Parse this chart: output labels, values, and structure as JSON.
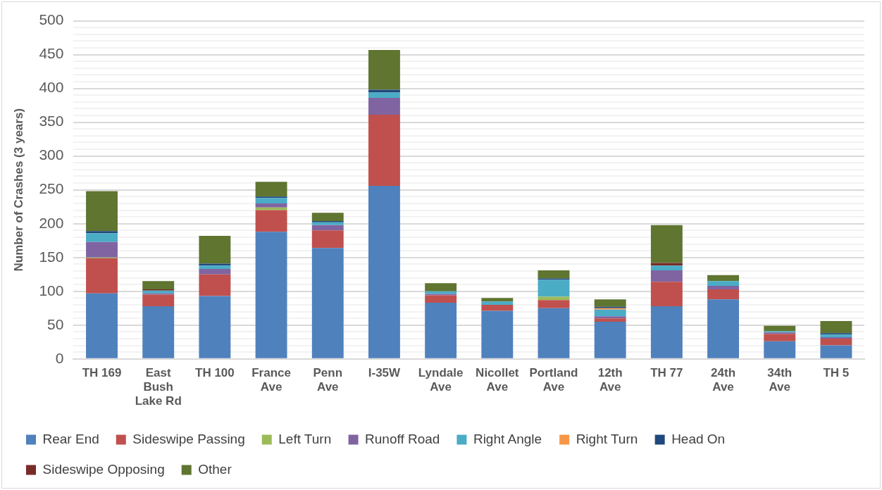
{
  "chart_data": {
    "type": "bar",
    "stacked": true,
    "ylabel": "Number of Crashes (3 years)",
    "categories": [
      "TH 169",
      "East Bush Lake Rd",
      "TH 100",
      "France Ave",
      "Penn Ave",
      "I-35W",
      "Lyndale Ave",
      "Nicollet Ave",
      "Portland Ave",
      "12th Ave",
      "TH 77",
      "24th Ave",
      "34th Ave",
      "TH 5"
    ],
    "series": [
      {
        "name": "Rear End",
        "color": "#4f81bd",
        "values": [
          97,
          78,
          93,
          188,
          164,
          256,
          83,
          71,
          75,
          55,
          78,
          88,
          26,
          20
        ]
      },
      {
        "name": "Sideswipe Passing",
        "color": "#c0504d",
        "values": [
          52,
          17,
          32,
          32,
          26,
          105,
          11,
          9,
          12,
          5,
          36,
          15,
          11,
          10
        ]
      },
      {
        "name": "Left Turn",
        "color": "#9bbb59",
        "values": [
          1,
          0,
          0,
          4,
          0,
          0,
          0,
          0,
          5,
          0,
          0,
          0,
          0,
          0
        ]
      },
      {
        "name": "Runoff Road",
        "color": "#8064a2",
        "values": [
          23,
          2,
          8,
          6,
          8,
          25,
          2,
          0,
          0,
          3,
          17,
          5,
          2,
          2
        ]
      },
      {
        "name": "Right Angle",
        "color": "#4bacc6",
        "values": [
          13,
          4,
          5,
          8,
          4,
          8,
          4,
          5,
          25,
          10,
          7,
          7,
          2,
          4
        ]
      },
      {
        "name": "Right Turn",
        "color": "#f79646",
        "values": [
          0,
          0,
          0,
          0,
          0,
          0,
          0,
          0,
          0,
          2,
          0,
          0,
          0,
          0
        ]
      },
      {
        "name": "Head On",
        "color": "#1f497d",
        "values": [
          3,
          0,
          3,
          2,
          2,
          4,
          0,
          0,
          2,
          2,
          0,
          0,
          0,
          2
        ]
      },
      {
        "name": "Sideswipe Opposing",
        "color": "#772c2a",
        "values": [
          0,
          2,
          0,
          0,
          0,
          0,
          0,
          0,
          0,
          0,
          4,
          0,
          0,
          0
        ]
      },
      {
        "name": "Other",
        "color": "#5f7530",
        "values": [
          59,
          12,
          41,
          22,
          12,
          59,
          12,
          5,
          12,
          11,
          56,
          9,
          8,
          18
        ]
      }
    ],
    "ylim": [
      0,
      500
    ],
    "yticks": [
      0,
      {
        "value": 10,
        "label": null
      },
      {
        "value": 20,
        "label": null
      },
      {
        "value": 30,
        "label": null
      },
      {
        "value": 40,
        "label": null
      },
      50,
      {
        "value": 60,
        "label": null
      },
      {
        "value": 70,
        "label": null
      },
      {
        "value": 80,
        "label": null
      },
      {
        "value": 90,
        "label": null
      },
      100,
      {
        "value": 110,
        "label": null
      },
      {
        "value": 120,
        "label": null
      },
      {
        "value": 130,
        "label": null
      },
      {
        "value": 140,
        "label": null
      },
      150,
      {
        "value": 160,
        "label": null
      },
      {
        "value": 170,
        "label": null
      },
      {
        "value": 180,
        "label": null
      },
      {
        "value": 190,
        "label": null
      },
      200,
      {
        "value": 210,
        "label": null
      },
      {
        "value": 220,
        "label": null
      },
      {
        "value": 230,
        "label": null
      },
      {
        "value": 240,
        "label": null
      },
      250,
      {
        "value": 260,
        "label": null
      },
      {
        "value": 270,
        "label": null
      },
      {
        "value": 280,
        "label": null
      },
      {
        "value": 290,
        "label": null
      },
      300,
      {
        "value": 310,
        "label": null
      },
      {
        "value": 320,
        "label": null
      },
      {
        "value": 330,
        "label": null
      },
      {
        "value": 340,
        "label": null
      },
      350,
      {
        "value": 360,
        "label": null
      },
      {
        "value": 370,
        "label": null
      },
      {
        "value": 380,
        "label": null
      },
      {
        "value": 390,
        "label": null
      },
      400,
      {
        "value": 410,
        "label": null
      },
      {
        "value": 420,
        "label": null
      },
      {
        "value": 430,
        "label": null
      },
      {
        "value": 440,
        "label": null
      },
      450,
      {
        "value": 460,
        "label": null
      },
      {
        "value": 470,
        "label": null
      },
      {
        "value": 480,
        "label": null
      },
      {
        "value": 490,
        "label": null
      },
      500
    ],
    "grid": "y",
    "legend": "bottom"
  }
}
